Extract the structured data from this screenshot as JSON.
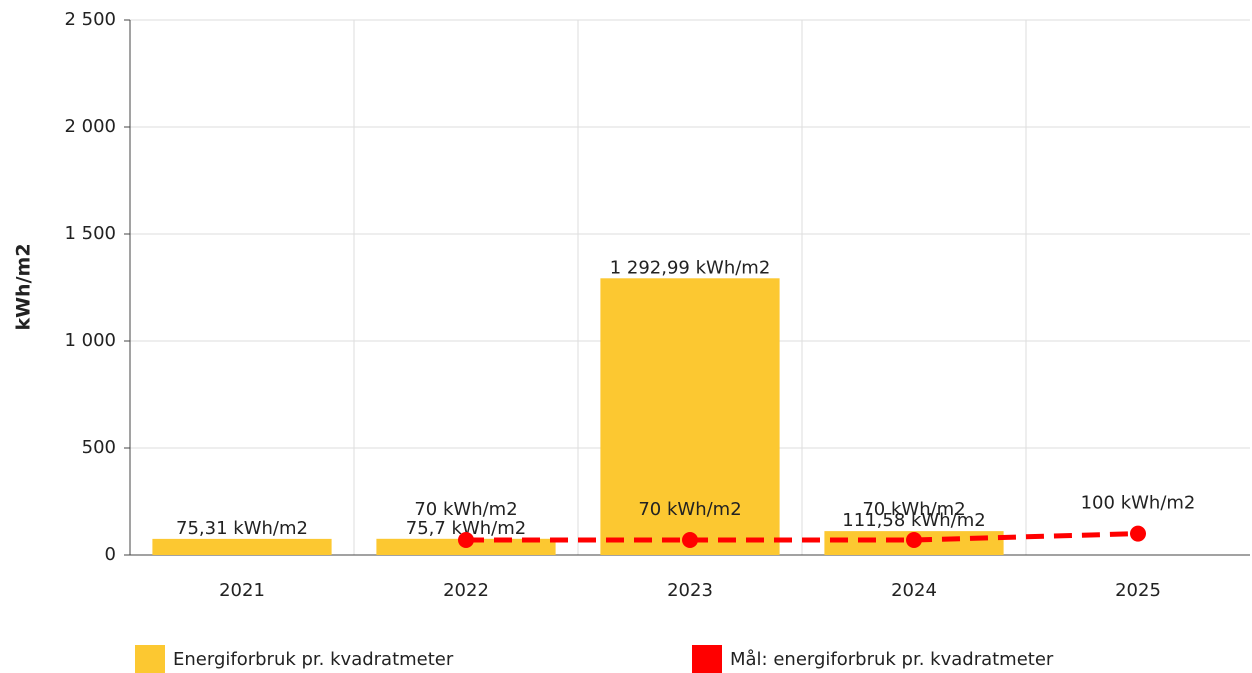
{
  "chart_data": {
    "type": "bar",
    "y_label": "kWh/m2",
    "categories": [
      "2021",
      "2022",
      "2023",
      "2024",
      "2025"
    ],
    "series": [
      {
        "name": "Energiforbruk pr. kvadratmeter",
        "type": "bar",
        "color": "#fcc831",
        "values": [
          75.31,
          75.7,
          1292.99,
          111.58,
          null
        ],
        "value_labels": [
          "75,31 kWh/m2",
          "75,7 kWh/m2",
          "1 292,99 kWh/m2",
          "111,58 kWh/m2",
          null
        ]
      },
      {
        "name": "Mål: energiforbruk pr. kvadratmeter",
        "type": "line",
        "dashed": true,
        "color": "#ff0000",
        "values": [
          null,
          70,
          70,
          70,
          100
        ],
        "value_labels": [
          null,
          "70 kWh/m2",
          "70 kWh/m2",
          "70 kWh/m2",
          "100 kWh/m2"
        ]
      }
    ],
    "ylim": [
      0,
      2500
    ],
    "yticks": [
      0,
      500,
      {
        "value": 1000,
        "label": "1 000"
      },
      {
        "value": 1500,
        "label": "1 500"
      },
      {
        "value": 2000,
        "label": "2 000"
      },
      {
        "value": 2500,
        "label": "2 500"
      }
    ],
    "grid": true
  }
}
